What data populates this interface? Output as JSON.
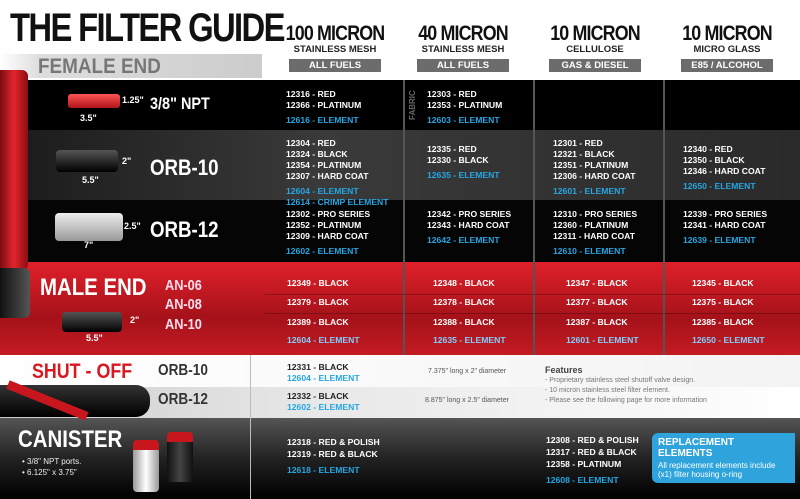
{
  "header": {
    "title": "THE FILTER GUIDE",
    "female_end": "FEMALE END"
  },
  "columns": [
    {
      "micron": "100 MICRON",
      "media": "STAINLESS MESH",
      "fuel": "ALL FUELS"
    },
    {
      "micron": "40 MICRON",
      "media": "STAINLESS MESH",
      "fuel": "ALL FUELS"
    },
    {
      "micron": "10 MICRON",
      "media": "CELLULOSE",
      "fuel": "GAS & DIESEL"
    },
    {
      "micron": "10 MICRON",
      "media": "MICRO GLASS",
      "fuel": "E85 / ALCOHOL"
    }
  ],
  "colors": {
    "element_blue": "#26a6e3",
    "brand_red": "#d71920",
    "label_bg": "#6c6c6c",
    "callout_blue": "#2ea3dc"
  },
  "female_rows": [
    {
      "label": "3/8\" NPT",
      "dims": [
        "1.25\"",
        "3.5\""
      ],
      "fabric_label": "FABRIC",
      "cells": [
        {
          "parts": [
            "12316 - RED",
            "12366 - PLATINUM"
          ],
          "elements": [
            "12616 - ELEMENT"
          ]
        },
        {
          "parts": [
            "12303 - RED",
            "12353 - PLATINUM"
          ],
          "elements": [
            "12603 - ELEMENT"
          ]
        },
        {
          "parts": [],
          "elements": []
        },
        {
          "parts": [],
          "elements": []
        }
      ]
    },
    {
      "label": "ORB-10",
      "dims": [
        "2\"",
        "5.5\""
      ],
      "cells": [
        {
          "parts": [
            "12304 - RED",
            "12324 - BLACK",
            "12354 - PLATINUM",
            "12307 - HARD COAT"
          ],
          "elements": [
            "12604 - ELEMENT",
            "12614 - CRIMP ELEMENT"
          ]
        },
        {
          "parts": [
            "12335 - RED",
            "12330 - BLACK"
          ],
          "elements": [
            "12635 - ELEMENT"
          ]
        },
        {
          "parts": [
            "12301 - RED",
            "12321 - BLACK",
            "12351 - PLATINUM",
            "12306 - HARD COAT"
          ],
          "elements": [
            "12601 - ELEMENT"
          ]
        },
        {
          "parts": [
            "12340 - RED",
            "12350 - BLACK",
            "12346 - HARD COAT"
          ],
          "elements": [
            "12650 - ELEMENT"
          ]
        }
      ]
    },
    {
      "label": "ORB-12",
      "dims": [
        "2.5\"",
        "7\""
      ],
      "cells": [
        {
          "parts": [
            "12302 - PRO SERIES",
            "12352 - PLATINUM",
            "12309 - HARD COAT"
          ],
          "elements": [
            "12602 - ELEMENT"
          ]
        },
        {
          "parts": [
            "12342 - PRO SERIES",
            "12343 - HARD COAT"
          ],
          "elements": [
            "12642 - ELEMENT"
          ]
        },
        {
          "parts": [
            "12310 - PRO SERIES",
            "12360 - PLATINUM",
            "12311 - HARD COAT"
          ],
          "elements": [
            "12610 - ELEMENT"
          ]
        },
        {
          "parts": [
            "12339 - PRO SERIES",
            "12341 - HARD COAT"
          ],
          "elements": [
            "12639 - ELEMENT"
          ]
        }
      ]
    }
  ],
  "male_end": {
    "title": "MALE END",
    "dims": [
      "2\"",
      "5.5\""
    ],
    "rows": [
      {
        "label": "AN-06",
        "values": [
          "12349 - BLACK",
          "12348 - BLACK",
          "12347 - BLACK",
          "12345 - BLACK"
        ]
      },
      {
        "label": "AN-08",
        "values": [
          "12379 - BLACK",
          "12378 - BLACK",
          "12377 - BLACK",
          "12375 - BLACK"
        ]
      },
      {
        "label": "AN-10",
        "values": [
          "12389 - BLACK",
          "12388 - BLACK",
          "12387 - BLACK",
          "12385 - BLACK"
        ]
      }
    ],
    "elements": [
      "12604 - ELEMENT",
      "12635 - ELEMENT",
      "12601 - ELEMENT",
      "12650 - ELEMENT"
    ]
  },
  "shutoff": {
    "title": "SHUT - OFF",
    "rows": [
      {
        "label": "ORB-10",
        "part": "12331 - BLACK",
        "element": "12604 - ELEMENT",
        "size": "7.375\" long x 2\" diameter"
      },
      {
        "label": "ORB-12",
        "part": "12332 - BLACK",
        "element": "12602 - ELEMENT",
        "size": "8.875\" long x 2.5\" diameter"
      }
    ],
    "features_title": "Features",
    "features": [
      "- Proprietary stainless steel shutoff valve design.",
      "- 10 micron stainless steel filter element.",
      "- Please see the following page for more information"
    ]
  },
  "canister": {
    "title": "CANISTER",
    "bullets": [
      "• 3/8\" NPT ports.",
      "• 6.125\" x 3.75\""
    ],
    "col1": {
      "parts": [
        "12318 - RED & POLISH",
        "12319 - RED & BLACK"
      ],
      "element": "12618 - ELEMENT"
    },
    "col3": {
      "parts": [
        "12308 - RED & POLISH",
        "12317 - RED & BLACK",
        "12358 - PLATINUM"
      ],
      "element": "12608 - ELEMENT"
    }
  },
  "callout": {
    "title": "REPLACEMENT ELEMENTS",
    "text": "All replacement elements include (x1) filter housing o-ring"
  }
}
